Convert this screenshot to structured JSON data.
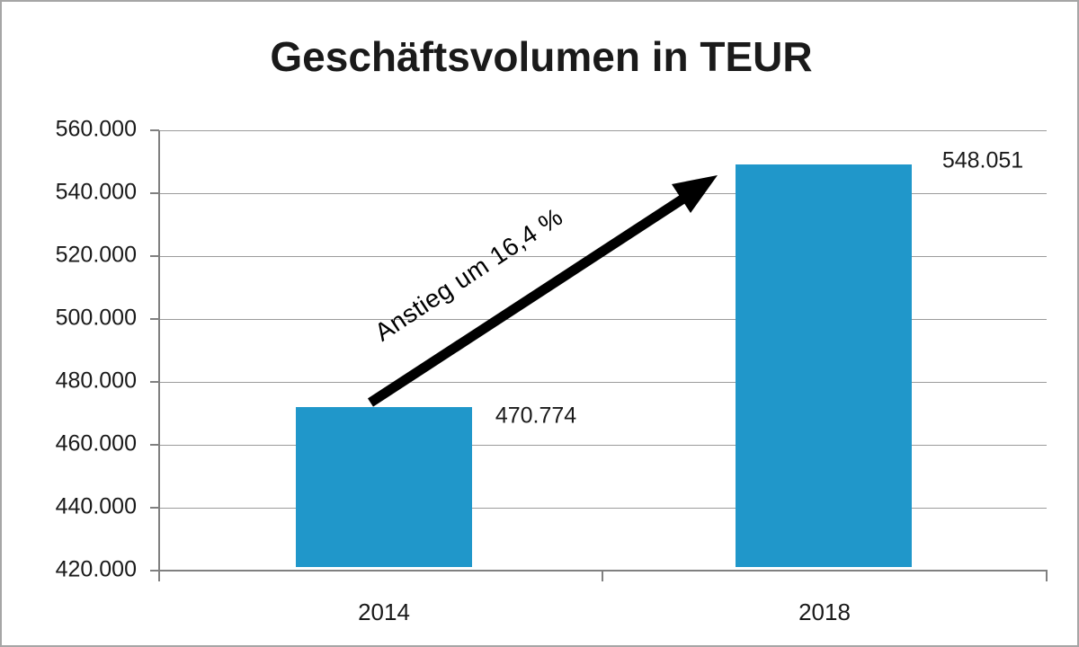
{
  "chart_data": {
    "type": "bar",
    "title": "Geschäftsvolumen in TEUR",
    "categories": [
      "2014",
      "2018"
    ],
    "values": [
      470774,
      548051
    ],
    "data_labels": [
      "470.774",
      "548.051"
    ],
    "y_tick_labels": [
      "560.000",
      "540.000",
      "520.000",
      "500.000",
      "480.000",
      "460.000",
      "440.000",
      "420.000"
    ],
    "ylim": [
      420000,
      560000
    ],
    "y_step": 20000,
    "xlabel": "",
    "ylabel": "",
    "grid": "horizontal",
    "legend": false,
    "annotation": {
      "text": "Anstieg um 16,4 %",
      "shape": "arrow",
      "from_category": "2014",
      "to_category": "2018"
    },
    "colors": {
      "bar": "#2097CA",
      "gridline": "#9B9B9B",
      "axis": "#808080",
      "text": "#1A1A1A",
      "arrow": "#000000",
      "border": "#A6A6A6",
      "background": "#FFFFFF"
    }
  }
}
